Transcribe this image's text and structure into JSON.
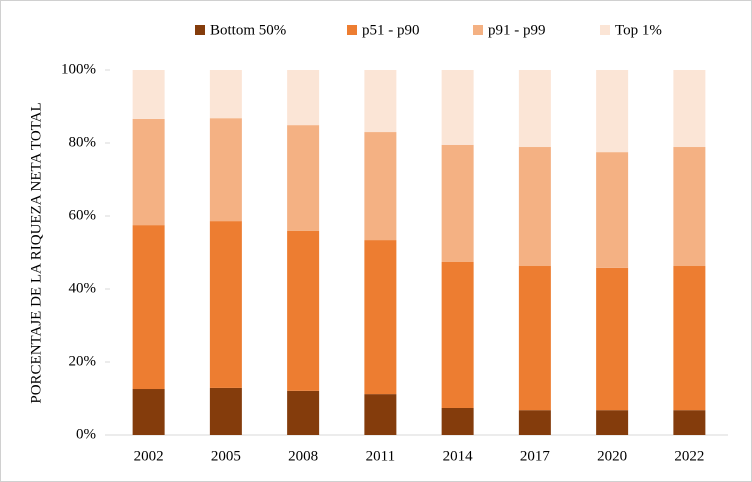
{
  "chart_data": {
    "type": "bar",
    "stacked": true,
    "y_label": "PORCENTAJE DE LA RIQUEZA NETA TOTAL",
    "categories": [
      "2002",
      "2005",
      "2008",
      "2011",
      "2014",
      "2017",
      "2020",
      "2022"
    ],
    "series": [
      {
        "name": "Bottom 50%",
        "color": "#843c0c",
        "values": [
          12.6,
          12.9,
          12.1,
          11.2,
          7.4,
          6.8,
          6.8,
          6.8
        ]
      },
      {
        "name": "p51 - p90",
        "color": "#ed7d31",
        "values": [
          44.9,
          45.7,
          43.8,
          42.2,
          40.0,
          39.5,
          39.0,
          39.5
        ]
      },
      {
        "name": "p91 - p99",
        "color": "#f4b183",
        "values": [
          29.1,
          28.2,
          29.0,
          29.6,
          32.1,
          32.6,
          31.7,
          32.6
        ]
      },
      {
        "name": "Top 1%",
        "color": "#fbe5d6",
        "values": [
          13.4,
          13.2,
          15.1,
          17.0,
          20.5,
          21.1,
          22.5,
          21.1
        ]
      }
    ],
    "ylim": [
      0,
      100
    ],
    "yticks": [
      {
        "value": 0,
        "label": "0%"
      },
      {
        "value": 20,
        "label": "20%"
      },
      {
        "value": 40,
        "label": "40%"
      },
      {
        "value": 60,
        "label": "60%"
      },
      {
        "value": 80,
        "label": "80%"
      },
      {
        "value": 100,
        "label": "100%"
      }
    ],
    "legend": "top"
  }
}
